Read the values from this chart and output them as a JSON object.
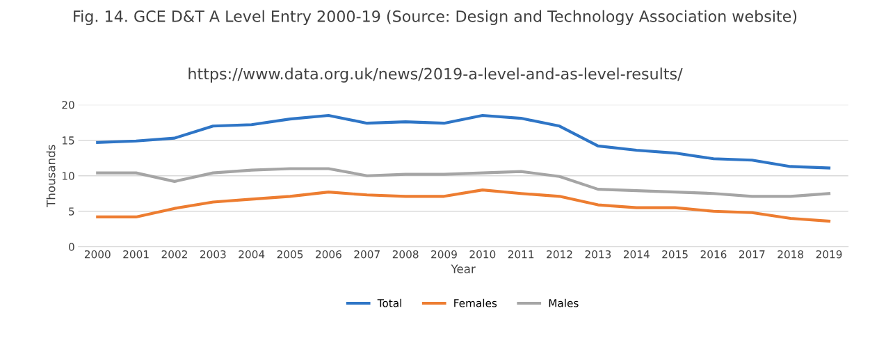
{
  "chart_data": {
    "type": "line",
    "title": "Fig. 14. GCE D&T A Level Entry 2000-19 (Source: Design and Technology Association website)",
    "subtitle": "https://www.data.org.uk/news/2019-a-level-and-as-level-results/",
    "xlabel": "Year",
    "ylabel": "Thousands",
    "categories": [
      "2000",
      "2001",
      "2002",
      "2003",
      "2004",
      "2005",
      "2006",
      "2007",
      "2008",
      "2009",
      "2010",
      "2011",
      "2012",
      "2013",
      "2014",
      "2015",
      "2016",
      "2017",
      "2018",
      "2019"
    ],
    "series": [
      {
        "name": "Total",
        "color": "#2e75c6",
        "values": [
          14.7,
          14.9,
          15.3,
          17.0,
          17.2,
          18.0,
          18.5,
          17.4,
          17.6,
          17.4,
          18.5,
          18.1,
          17.0,
          14.2,
          13.6,
          13.2,
          12.4,
          12.2,
          11.3,
          11.1
        ]
      },
      {
        "name": "Females",
        "color": "#ed7d31",
        "values": [
          4.2,
          4.2,
          5.4,
          6.3,
          6.7,
          7.1,
          7.7,
          7.3,
          7.1,
          7.1,
          8.0,
          7.5,
          7.1,
          5.9,
          5.5,
          5.5,
          5.0,
          4.8,
          4.0,
          3.6
        ]
      },
      {
        "name": "Males",
        "color": "#a5a5a5",
        "values": [
          10.4,
          10.4,
          9.2,
          10.4,
          10.8,
          11.0,
          11.0,
          10.0,
          10.2,
          10.2,
          10.4,
          10.6,
          9.9,
          8.1,
          7.9,
          7.7,
          7.5,
          7.1,
          7.1,
          7.5
        ]
      }
    ],
    "ylim": [
      0,
      20
    ],
    "yticks": [
      0,
      5,
      10,
      15,
      20
    ],
    "grid": "y",
    "legend": "bottom",
    "marker": "none",
    "line_style": "solid"
  }
}
